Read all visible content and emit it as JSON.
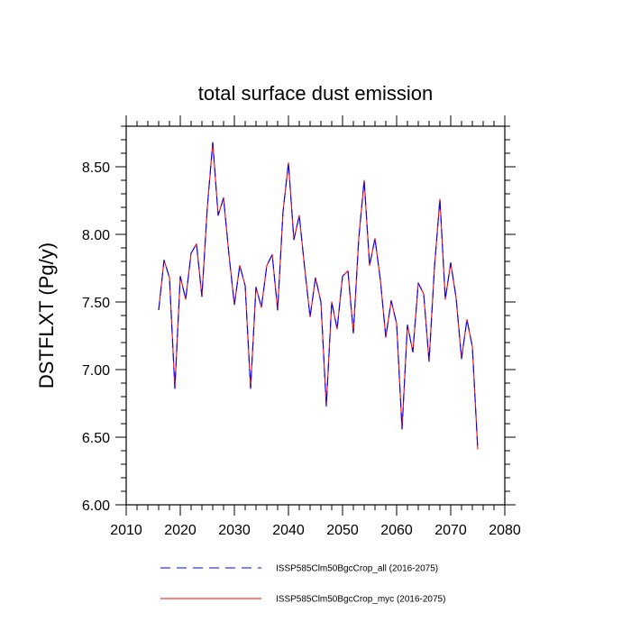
{
  "chart_data": {
    "type": "line",
    "title": "total surface dust emission",
    "xlabel": "",
    "ylabel": "DSTFLXT  (Pg/y)",
    "xlim": [
      2010,
      2080
    ],
    "ylim": [
      6.0,
      8.8
    ],
    "x_ticks": [
      2010,
      2020,
      2030,
      2040,
      2050,
      2060,
      2070,
      2080
    ],
    "x_tick_labels": [
      "2010",
      "2020",
      "2030",
      "2040",
      "2050",
      "2060",
      "2070",
      "2080"
    ],
    "y_ticks": [
      6.0,
      6.5,
      7.0,
      7.5,
      8.0,
      8.5
    ],
    "y_tick_labels": [
      "6.00",
      "6.50",
      "7.00",
      "7.50",
      "8.00",
      "8.50"
    ],
    "grid": false,
    "legend_position": "bottom",
    "x": [
      2016,
      2017,
      2018,
      2019,
      2020,
      2021,
      2022,
      2023,
      2024,
      2025,
      2026,
      2027,
      2028,
      2029,
      2030,
      2031,
      2032,
      2033,
      2034,
      2035,
      2036,
      2037,
      2038,
      2039,
      2040,
      2041,
      2042,
      2043,
      2044,
      2045,
      2046,
      2047,
      2048,
      2049,
      2050,
      2051,
      2052,
      2053,
      2054,
      2055,
      2056,
      2057,
      2058,
      2059,
      2060,
      2061,
      2062,
      2063,
      2064,
      2065,
      2066,
      2067,
      2068,
      2069,
      2070,
      2071,
      2072,
      2073,
      2074,
      2075
    ],
    "series": [
      {
        "name": "ISSP585Clm50BgcCrop_all (2016-2075)",
        "color": "#0000ff",
        "dash": "dashed",
        "values": [
          7.44,
          7.81,
          7.68,
          6.86,
          7.69,
          7.52,
          7.86,
          7.93,
          7.54,
          8.2,
          8.68,
          8.14,
          8.27,
          7.85,
          7.48,
          7.77,
          7.62,
          6.86,
          7.61,
          7.46,
          7.77,
          7.85,
          7.44,
          8.17,
          8.53,
          7.96,
          8.14,
          7.75,
          7.39,
          7.68,
          7.5,
          6.73,
          7.5,
          7.3,
          7.69,
          7.73,
          7.27,
          7.97,
          8.4,
          7.77,
          7.97,
          7.66,
          7.24,
          7.51,
          7.34,
          6.56,
          7.33,
          7.13,
          7.64,
          7.56,
          7.06,
          7.76,
          8.26,
          7.52,
          7.79,
          7.53,
          7.08,
          7.37,
          7.17,
          6.41
        ]
      },
      {
        "name": "ISSP585Clm50BgcCrop_myc (2016-2075)",
        "color": "#ff0000",
        "dash": "solid",
        "values": [
          7.44,
          7.81,
          7.68,
          6.86,
          7.69,
          7.52,
          7.86,
          7.93,
          7.54,
          8.2,
          8.68,
          8.14,
          8.27,
          7.85,
          7.48,
          7.77,
          7.62,
          6.86,
          7.61,
          7.46,
          7.77,
          7.85,
          7.44,
          8.17,
          8.53,
          7.96,
          8.14,
          7.75,
          7.39,
          7.68,
          7.5,
          6.73,
          7.5,
          7.3,
          7.69,
          7.73,
          7.27,
          7.97,
          8.4,
          7.77,
          7.97,
          7.66,
          7.24,
          7.51,
          7.34,
          6.56,
          7.33,
          7.13,
          7.64,
          7.56,
          7.06,
          7.76,
          8.26,
          7.52,
          7.79,
          7.53,
          7.08,
          7.37,
          7.17,
          6.41
        ]
      }
    ]
  }
}
